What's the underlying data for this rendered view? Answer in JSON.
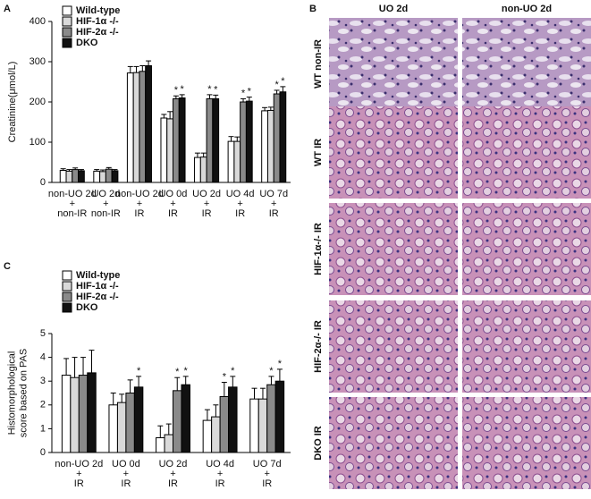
{
  "panels": {
    "a": "A",
    "b": "B",
    "c": "C"
  },
  "chart_data": [
    {
      "type": "bar",
      "y_label": [
        "Creatinine(μmol/L)"
      ],
      "categories": [
        [
          "non-UO 2d",
          "+",
          "non-IR"
        ],
        [
          "UO 2d",
          "+",
          "non-IR"
        ],
        [
          "non-UO 2d",
          "+",
          "IR"
        ],
        [
          "UO 0d",
          "+",
          "IR"
        ],
        [
          "UO 2d",
          "+",
          "IR"
        ],
        [
          "UO 4d",
          "+",
          "IR"
        ],
        [
          "UO 7d",
          "+",
          "IR"
        ]
      ],
      "ylim": [
        0,
        400
      ],
      "yticks": [
        0,
        100,
        200,
        300,
        400
      ],
      "series": [
        {
          "name": "Wild-type",
          "color": "#ffffff",
          "values": [
            30,
            28,
            272,
            160,
            62,
            102,
            178
          ],
          "errors": [
            4,
            4,
            16,
            9,
            11,
            12,
            8
          ],
          "stars": [
            null,
            null,
            null,
            null,
            null,
            null,
            null
          ]
        },
        {
          "name": "HIF-1α -/-",
          "color": "#d9d9d9",
          "values": [
            28,
            27,
            273,
            158,
            63,
            102,
            179
          ],
          "errors": [
            4,
            4,
            15,
            18,
            10,
            11,
            8
          ],
          "stars": [
            null,
            null,
            null,
            null,
            null,
            null,
            null
          ]
        },
        {
          "name": "HIF-2α -/-",
          "color": "#8a8a8a",
          "values": [
            32,
            33,
            276,
            208,
            208,
            200,
            220
          ],
          "errors": [
            4,
            4,
            14,
            7,
            10,
            8,
            9
          ],
          "stars": [
            null,
            null,
            null,
            "*",
            "*",
            "*",
            "*"
          ]
        },
        {
          "name": "DKO",
          "color": "#111111",
          "values": [
            29,
            29,
            290,
            210,
            208,
            202,
            225
          ],
          "errors": [
            3,
            3,
            12,
            8,
            9,
            10,
            13
          ],
          "stars": [
            null,
            null,
            null,
            "*",
            "*",
            "*",
            "*"
          ]
        }
      ]
    },
    {
      "type": "bar",
      "y_label": [
        "Histomorphological",
        "score based on PAS"
      ],
      "categories": [
        [
          "non-UO 2d",
          "+",
          "IR"
        ],
        [
          "UO 0d",
          "+",
          "IR"
        ],
        [
          "UO 2d",
          "+",
          "IR"
        ],
        [
          "UO 4d",
          "+",
          "IR"
        ],
        [
          "UO 7d",
          "+",
          "IR"
        ]
      ],
      "ylim": [
        0,
        5
      ],
      "yticks": [
        0,
        1,
        2,
        3,
        4,
        5
      ],
      "series": [
        {
          "name": "Wild-type",
          "color": "#ffffff",
          "values": [
            3.25,
            2.0,
            0.62,
            1.35,
            2.25
          ],
          "errors": [
            0.7,
            0.5,
            0.5,
            0.45,
            0.45
          ],
          "stars": [
            null,
            null,
            null,
            null,
            null
          ]
        },
        {
          "name": "HIF-1α -/-",
          "color": "#d9d9d9",
          "values": [
            3.15,
            2.1,
            0.75,
            1.5,
            2.25
          ],
          "errors": [
            0.85,
            0.35,
            0.45,
            0.5,
            0.45
          ],
          "stars": [
            null,
            null,
            null,
            null,
            null
          ]
        },
        {
          "name": "HIF-2α -/-",
          "color": "#8a8a8a",
          "values": [
            3.25,
            2.5,
            2.6,
            2.35,
            2.85
          ],
          "errors": [
            0.75,
            0.55,
            0.55,
            0.6,
            0.35
          ],
          "stars": [
            null,
            null,
            "*",
            "*",
            "*"
          ]
        },
        {
          "name": "DKO",
          "color": "#111111",
          "values": [
            3.35,
            2.75,
            2.85,
            2.75,
            3.0
          ],
          "errors": [
            0.95,
            0.45,
            0.35,
            0.45,
            0.5
          ],
          "stars": [
            null,
            "*",
            "*",
            "*",
            "*"
          ]
        }
      ]
    }
  ],
  "histology": {
    "columns": [
      "UO 2d",
      "non-UO 2d"
    ],
    "rows": [
      "WT non-IR",
      "WT IR",
      "HIF-1α-/- IR",
      "HIF-2α-/- IR",
      "DKO IR"
    ]
  }
}
